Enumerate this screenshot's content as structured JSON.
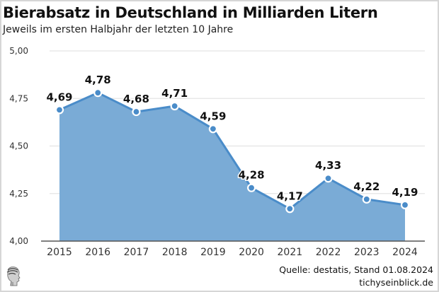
{
  "header": {
    "title": "Bierabsatz in Deutschland in Milliarden Litern",
    "subtitle": "Jeweils im ersten Halbjahr der letzten 10 Jahre"
  },
  "footer": {
    "source": "Quelle: destatis, Stand 01.08.2024",
    "site": "tichyseinblick.de",
    "logo_icon": "classical-head-logo-icon"
  },
  "colors": {
    "area_fill": "#7aabd6",
    "line": "#4a8cc9",
    "marker": "#4a8cc9",
    "grid": "#e8e8e8",
    "axis": "#555555"
  },
  "chart_data": {
    "type": "area",
    "title": "Bierabsatz in Deutschland in Milliarden Litern",
    "subtitle": "Jeweils im ersten Halbjahr der letzten 10 Jahre",
    "xlabel": "",
    "ylabel": "",
    "categories": [
      "2015",
      "2016",
      "2017",
      "2018",
      "2019",
      "2020",
      "2021",
      "2022",
      "2023",
      "2024"
    ],
    "values": [
      4.69,
      4.78,
      4.68,
      4.71,
      4.59,
      4.28,
      4.17,
      4.33,
      4.22,
      4.19
    ],
    "data_labels": [
      "4,69",
      "4,78",
      "4,68",
      "4,71",
      "4,59",
      "4,28",
      "4,17",
      "4,33",
      "4,22",
      "4,19"
    ],
    "ylim": [
      4.0,
      5.0
    ],
    "yticks": [
      4.0,
      4.25,
      4.5,
      4.75,
      5.0
    ],
    "ytick_labels": [
      "4,00",
      "4,25",
      "4,50",
      "4,75",
      "5,00"
    ],
    "grid": true,
    "legend": "none"
  }
}
